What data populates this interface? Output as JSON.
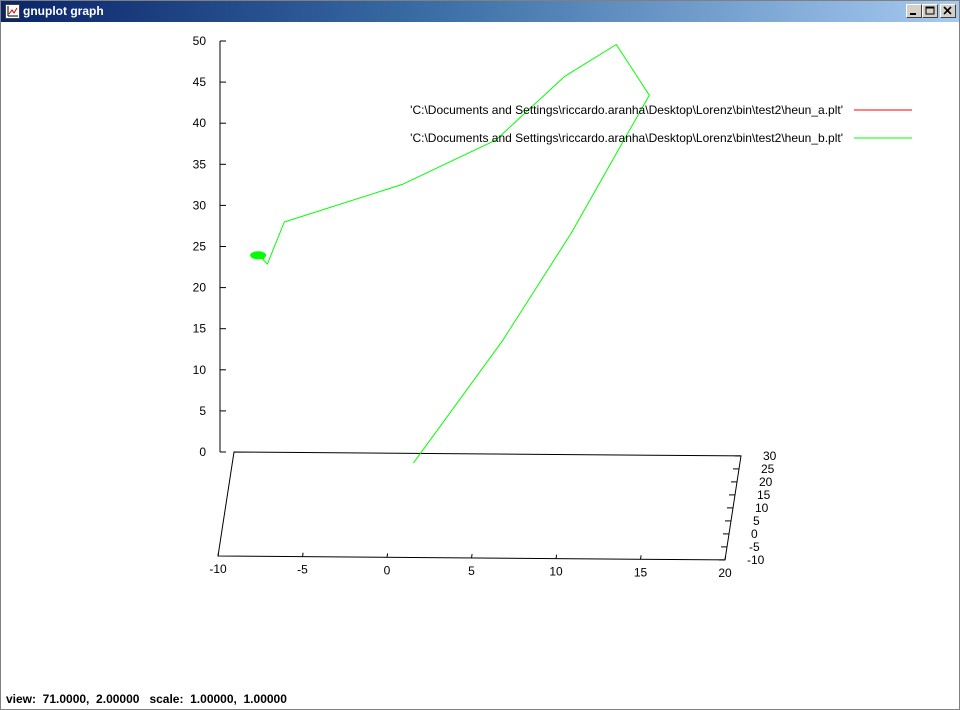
{
  "window": {
    "title": "gnuplot graph",
    "buttons": {
      "minimize": "_",
      "maximize": "□",
      "close": "×"
    }
  },
  "status": {
    "text": "view:  71.0000,  2.00000   scale:  1.00000,  1.00000"
  },
  "chart_data": {
    "type": "line",
    "title": "",
    "xlabel": "",
    "ylabel": "",
    "zlabel": "",
    "view": {
      "rot_x": 71.0,
      "rot_z": 2.0,
      "scale": 1.0,
      "scale_z": 1.0
    },
    "xlim": [
      -10,
      20
    ],
    "ylim": [
      -10,
      30
    ],
    "zlim": [
      0,
      50
    ],
    "x_ticks": [
      "-10",
      "-5",
      "0",
      "5",
      "10",
      "15",
      "20"
    ],
    "y_ticks": [
      "-10",
      "-5",
      "0",
      "5",
      "10",
      "15",
      "20",
      "25",
      "30"
    ],
    "z_ticks": [
      "0",
      "5",
      "10",
      "15",
      "20",
      "25",
      "30",
      "35",
      "40",
      "45",
      "50"
    ],
    "legend_position": "top-right",
    "series": [
      {
        "name": "'C:\\Documents and Settings\\riccardo.aranha\\Desktop\\Lorenz\\bin\\test2\\heun_a.plt'",
        "color": "#ff0000",
        "points": []
      },
      {
        "name": "'C:\\Documents and Settings\\riccardo.aranha\\Desktop\\Lorenz\\bin\\test2\\heun_b.plt'",
        "color": "#00ff00",
        "points": [
          [
            1.3,
            1.0,
            8
          ],
          [
            6.5,
            4.0,
            22
          ],
          [
            10.5,
            8.0,
            34
          ],
          [
            15.0,
            12.0,
            49.5
          ],
          [
            13.0,
            14.0,
            55
          ],
          [
            10.0,
            11.0,
            52
          ],
          [
            6.0,
            8.5,
            45
          ],
          [
            0.5,
            7.0,
            40
          ],
          [
            -6.5,
            8.0,
            35
          ],
          [
            -7.5,
            7.5,
            30
          ],
          [
            -8.0,
            7.8,
            31
          ],
          [
            -7.7,
            8.0,
            30.5
          ],
          [
            -8.1,
            7.6,
            30.8
          ]
        ]
      }
    ]
  }
}
